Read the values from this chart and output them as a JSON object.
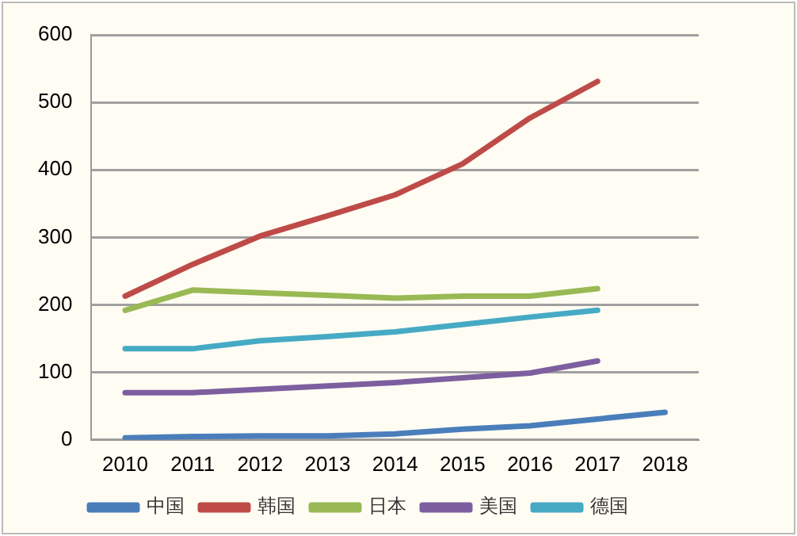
{
  "chart_data": {
    "type": "line",
    "categories": [
      "2010",
      "2011",
      "2012",
      "2013",
      "2014",
      "2015",
      "2016",
      "2017",
      "2018"
    ],
    "series": [
      {
        "name": "中国",
        "color": "#4a7ebb",
        "values": [
          3,
          5,
          6,
          6,
          9,
          16,
          21,
          31,
          41
        ]
      },
      {
        "name": "韩国",
        "color": "#be4b48",
        "values": [
          213,
          260,
          302,
          332,
          363,
          409,
          477,
          531,
          null
        ]
      },
      {
        "name": "日本",
        "color": "#98b954",
        "values": [
          192,
          222,
          218,
          214,
          210,
          213,
          213,
          224,
          null
        ]
      },
      {
        "name": "美国",
        "color": "#7d5fa0",
        "values": [
          70,
          70,
          75,
          80,
          85,
          92,
          99,
          117,
          null
        ]
      },
      {
        "name": "德国",
        "color": "#46aac5",
        "values": [
          135,
          135,
          147,
          153,
          160,
          171,
          182,
          192,
          null
        ]
      }
    ],
    "ylim": [
      0,
      600
    ],
    "yticks": [
      0,
      100,
      200,
      300,
      400,
      500,
      600
    ],
    "grid": "y",
    "legend": "bottom",
    "marker": "none",
    "line_style": "solid"
  }
}
